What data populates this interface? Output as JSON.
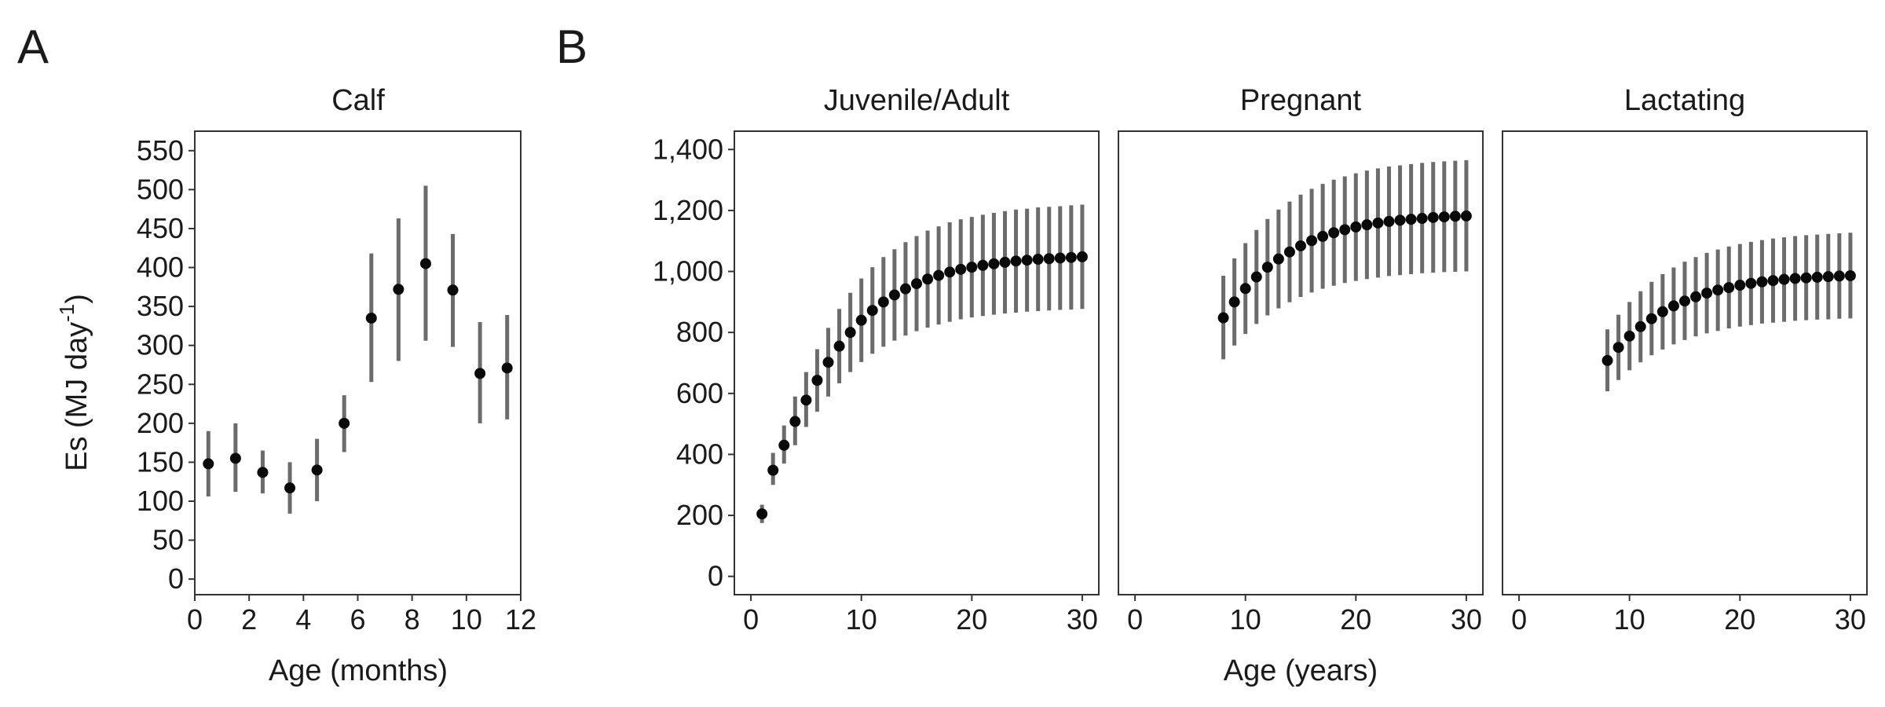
{
  "panel_labels": {
    "a": "A",
    "b": "B"
  },
  "colors": {
    "point": "#0a0a0a",
    "errorbar": "#6b6b6b",
    "frame": "#333333"
  },
  "chart_data": [
    {
      "type": "scatter",
      "panel": "A",
      "title": "Calf",
      "xlabel": "Age (months)",
      "ylabel": "Es (MJ day",
      "ylabel_sup": "-1",
      "ylabel_close": ")",
      "xlim": [
        0,
        12
      ],
      "ylim": [
        -20,
        575
      ],
      "xticks": [
        0,
        2,
        4,
        6,
        8,
        10,
        12
      ],
      "yticks": [
        0,
        50,
        100,
        150,
        200,
        250,
        300,
        350,
        400,
        450,
        500,
        550
      ],
      "ytick_labels": [
        "0",
        "50",
        "100",
        "150",
        "200",
        "250",
        "300",
        "350",
        "400",
        "450",
        "500",
        "550"
      ],
      "grid": false,
      "points": [
        {
          "x": 0.5,
          "y": 148,
          "lo": 106,
          "hi": 190
        },
        {
          "x": 1.5,
          "y": 155,
          "lo": 112,
          "hi": 200
        },
        {
          "x": 2.5,
          "y": 137,
          "lo": 110,
          "hi": 165
        },
        {
          "x": 3.5,
          "y": 117,
          "lo": 84,
          "hi": 150
        },
        {
          "x": 4.5,
          "y": 140,
          "lo": 100,
          "hi": 180
        },
        {
          "x": 5.5,
          "y": 200,
          "lo": 163,
          "hi": 236
        },
        {
          "x": 6.5,
          "y": 335,
          "lo": 253,
          "hi": 418
        },
        {
          "x": 7.5,
          "y": 372,
          "lo": 280,
          "hi": 463
        },
        {
          "x": 8.5,
          "y": 405,
          "lo": 306,
          "hi": 505
        },
        {
          "x": 9.5,
          "y": 371,
          "lo": 298,
          "hi": 443
        },
        {
          "x": 10.5,
          "y": 264,
          "lo": 200,
          "hi": 330
        },
        {
          "x": 11.5,
          "y": 271,
          "lo": 205,
          "hi": 339
        }
      ]
    },
    {
      "type": "scatter",
      "panel": "B",
      "shared_xlabel": "Age (years)",
      "xlim": [
        -1.5,
        31.5
      ],
      "ylim": [
        -60,
        1460
      ],
      "xticks": [
        0,
        10,
        20,
        30
      ],
      "yticks": [
        0,
        200,
        400,
        600,
        800,
        1000,
        1200,
        1400
      ],
      "ytick_labels": [
        "0",
        "200",
        "400",
        "600",
        "800",
        "1,000",
        "1,200",
        "1,400"
      ],
      "grid": false,
      "facets": [
        {
          "title": "Juvenile/Adult",
          "points": [
            {
              "x": 1,
              "y": 205,
              "lo": 175,
              "hi": 235
            },
            {
              "x": 2,
              "y": 348,
              "lo": 300,
              "hi": 405
            },
            {
              "x": 3,
              "y": 430,
              "lo": 370,
              "hi": 495
            },
            {
              "x": 4,
              "y": 508,
              "lo": 430,
              "hi": 590
            },
            {
              "x": 5,
              "y": 578,
              "lo": 490,
              "hi": 670
            },
            {
              "x": 6,
              "y": 643,
              "lo": 540,
              "hi": 745
            },
            {
              "x": 7,
              "y": 702,
              "lo": 590,
              "hi": 815
            },
            {
              "x": 8,
              "y": 755,
              "lo": 633,
              "hi": 877
            },
            {
              "x": 9,
              "y": 800,
              "lo": 670,
              "hi": 930
            },
            {
              "x": 10,
              "y": 840,
              "lo": 703,
              "hi": 977
            },
            {
              "x": 11,
              "y": 872,
              "lo": 730,
              "hi": 1014
            },
            {
              "x": 12,
              "y": 900,
              "lo": 753,
              "hi": 1047
            },
            {
              "x": 13,
              "y": 923,
              "lo": 773,
              "hi": 1073
            },
            {
              "x": 14,
              "y": 943,
              "lo": 790,
              "hi": 1096
            },
            {
              "x": 15,
              "y": 960,
              "lo": 804,
              "hi": 1116
            },
            {
              "x": 16,
              "y": 975,
              "lo": 816,
              "hi": 1134
            },
            {
              "x": 17,
              "y": 987,
              "lo": 826,
              "hi": 1148
            },
            {
              "x": 18,
              "y": 998,
              "lo": 835,
              "hi": 1161
            },
            {
              "x": 19,
              "y": 1007,
              "lo": 843,
              "hi": 1171
            },
            {
              "x": 20,
              "y": 1014,
              "lo": 849,
              "hi": 1179
            },
            {
              "x": 21,
              "y": 1020,
              "lo": 854,
              "hi": 1186
            },
            {
              "x": 22,
              "y": 1025,
              "lo": 858,
              "hi": 1192
            },
            {
              "x": 23,
              "y": 1030,
              "lo": 862,
              "hi": 1198
            },
            {
              "x": 24,
              "y": 1034,
              "lo": 865,
              "hi": 1203
            },
            {
              "x": 25,
              "y": 1037,
              "lo": 868,
              "hi": 1206
            },
            {
              "x": 26,
              "y": 1040,
              "lo": 870,
              "hi": 1210
            },
            {
              "x": 27,
              "y": 1042,
              "lo": 872,
              "hi": 1212
            },
            {
              "x": 28,
              "y": 1044,
              "lo": 874,
              "hi": 1214
            },
            {
              "x": 29,
              "y": 1046,
              "lo": 875,
              "hi": 1217
            },
            {
              "x": 30,
              "y": 1048,
              "lo": 877,
              "hi": 1219
            }
          ]
        },
        {
          "title": "Pregnant",
          "points": [
            {
              "x": 8,
              "y": 848,
              "lo": 712,
              "hi": 986
            },
            {
              "x": 9,
              "y": 900,
              "lo": 757,
              "hi": 1043
            },
            {
              "x": 10,
              "y": 944,
              "lo": 795,
              "hi": 1093
            },
            {
              "x": 11,
              "y": 982,
              "lo": 828,
              "hi": 1136
            },
            {
              "x": 12,
              "y": 1014,
              "lo": 856,
              "hi": 1172
            },
            {
              "x": 13,
              "y": 1041,
              "lo": 879,
              "hi": 1203
            },
            {
              "x": 14,
              "y": 1064,
              "lo": 899,
              "hi": 1229
            },
            {
              "x": 15,
              "y": 1084,
              "lo": 916,
              "hi": 1252
            },
            {
              "x": 16,
              "y": 1101,
              "lo": 931,
              "hi": 1271
            },
            {
              "x": 17,
              "y": 1115,
              "lo": 943,
              "hi": 1287
            },
            {
              "x": 18,
              "y": 1127,
              "lo": 953,
              "hi": 1301
            },
            {
              "x": 19,
              "y": 1137,
              "lo": 962,
              "hi": 1312
            },
            {
              "x": 20,
              "y": 1146,
              "lo": 969,
              "hi": 1322
            },
            {
              "x": 21,
              "y": 1153,
              "lo": 975,
              "hi": 1331
            },
            {
              "x": 22,
              "y": 1159,
              "lo": 980,
              "hi": 1338
            },
            {
              "x": 23,
              "y": 1164,
              "lo": 985,
              "hi": 1344
            },
            {
              "x": 24,
              "y": 1168,
              "lo": 988,
              "hi": 1348
            },
            {
              "x": 25,
              "y": 1171,
              "lo": 991,
              "hi": 1352
            },
            {
              "x": 26,
              "y": 1174,
              "lo": 994,
              "hi": 1356
            },
            {
              "x": 27,
              "y": 1177,
              "lo": 996,
              "hi": 1359
            },
            {
              "x": 28,
              "y": 1179,
              "lo": 998,
              "hi": 1361
            },
            {
              "x": 29,
              "y": 1181,
              "lo": 999,
              "hi": 1363
            },
            {
              "x": 30,
              "y": 1182,
              "lo": 1000,
              "hi": 1365
            }
          ]
        },
        {
          "title": "Lactating",
          "points": [
            {
              "x": 8,
              "y": 708,
              "lo": 607,
              "hi": 810
            },
            {
              "x": 9,
              "y": 751,
              "lo": 644,
              "hi": 858
            },
            {
              "x": 10,
              "y": 788,
              "lo": 676,
              "hi": 900
            },
            {
              "x": 11,
              "y": 819,
              "lo": 702,
              "hi": 935
            },
            {
              "x": 12,
              "y": 845,
              "lo": 725,
              "hi": 966
            },
            {
              "x": 13,
              "y": 868,
              "lo": 744,
              "hi": 991
            },
            {
              "x": 14,
              "y": 887,
              "lo": 761,
              "hi": 1013
            },
            {
              "x": 15,
              "y": 903,
              "lo": 775,
              "hi": 1032
            },
            {
              "x": 16,
              "y": 917,
              "lo": 787,
              "hi": 1047
            },
            {
              "x": 17,
              "y": 929,
              "lo": 797,
              "hi": 1061
            },
            {
              "x": 18,
              "y": 939,
              "lo": 805,
              "hi": 1072
            },
            {
              "x": 19,
              "y": 947,
              "lo": 813,
              "hi": 1082
            },
            {
              "x": 20,
              "y": 955,
              "lo": 819,
              "hi": 1090
            },
            {
              "x": 21,
              "y": 961,
              "lo": 824,
              "hi": 1097
            },
            {
              "x": 22,
              "y": 966,
              "lo": 829,
              "hi": 1103
            },
            {
              "x": 23,
              "y": 970,
              "lo": 832,
              "hi": 1108
            },
            {
              "x": 24,
              "y": 974,
              "lo": 835,
              "hi": 1112
            },
            {
              "x": 25,
              "y": 977,
              "lo": 838,
              "hi": 1116
            },
            {
              "x": 26,
              "y": 979,
              "lo": 840,
              "hi": 1119
            },
            {
              "x": 27,
              "y": 981,
              "lo": 842,
              "hi": 1121
            },
            {
              "x": 28,
              "y": 983,
              "lo": 843,
              "hi": 1123
            },
            {
              "x": 29,
              "y": 985,
              "lo": 845,
              "hi": 1125
            },
            {
              "x": 30,
              "y": 986,
              "lo": 846,
              "hi": 1127
            }
          ]
        }
      ]
    }
  ]
}
